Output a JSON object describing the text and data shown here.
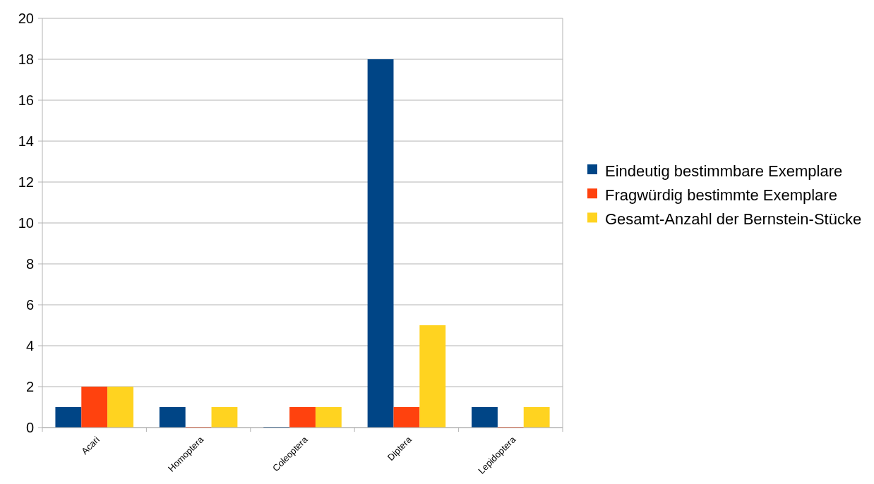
{
  "chart_data": {
    "type": "bar",
    "categories": [
      "Acari",
      "Homoptera",
      "Coleoptera",
      "Diptera",
      "Lepidoptera"
    ],
    "series": [
      {
        "name": "Eindeutig bestimmbare Exemplare",
        "color": "#004586",
        "values": [
          1,
          1,
          0,
          18,
          1
        ]
      },
      {
        "name": "Fragwürdig bestimmte Exemplare",
        "color": "#ff420e",
        "values": [
          2,
          0,
          1,
          1,
          0
        ]
      },
      {
        "name": "Gesamt-Anzahl der Bernstein-Stücke",
        "color": "#ffd320",
        "values": [
          2,
          1,
          1,
          5,
          1
        ]
      }
    ],
    "ylim": [
      0,
      20
    ],
    "yticks": [
      0,
      2,
      4,
      6,
      8,
      10,
      12,
      14,
      16,
      18,
      20
    ],
    "grid": "y",
    "legend": "right"
  }
}
